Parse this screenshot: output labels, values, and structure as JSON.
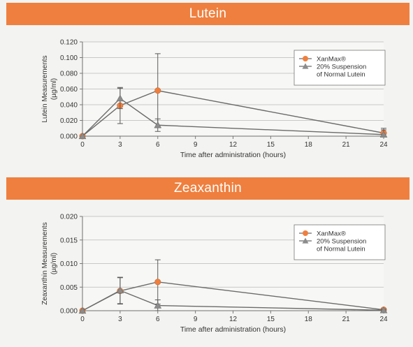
{
  "chart_data": [
    {
      "type": "line",
      "title": "Lutein",
      "xlabel": "Time after administration (hours)",
      "ylabel": "Lutein Measurements (µg/ml)",
      "ylabel_lines": [
        "Lutein Measurements",
        "(µg/ml)"
      ],
      "xlim": [
        0,
        24
      ],
      "ylim": [
        0,
        0.12
      ],
      "x_ticks": [
        0,
        3,
        6,
        9,
        12,
        15,
        18,
        21,
        24
      ],
      "y_ticks": [
        0,
        0.02,
        0.04,
        0.06,
        0.08,
        0.1,
        0.12
      ],
      "y_tick_labels": [
        "0.000",
        "0.020",
        "0.040",
        "0.060",
        "0.080",
        "0.100",
        "0.120"
      ],
      "grid": true,
      "legend_position": "top-right",
      "series": [
        {
          "name": "XanMax®",
          "color": "#ef7f3e",
          "marker": "circle",
          "x": [
            0,
            3,
            6,
            24
          ],
          "y": [
            0.0,
            0.039,
            0.058,
            0.004
          ],
          "error": [
            0,
            0.023,
            0.047,
            0.006
          ]
        },
        {
          "name": "20% Suspension of Normal Lutein",
          "legend_lines": [
            "20% Suspension",
            "of Normal Lutein"
          ],
          "color": "#8c8c8c",
          "marker": "triangle",
          "x": [
            0,
            3,
            6,
            24
          ],
          "y": [
            0.0,
            0.048,
            0.014,
            0.002
          ],
          "error": [
            0,
            0.013,
            0.008,
            0.006
          ]
        }
      ]
    },
    {
      "type": "line",
      "title": "Zeaxanthin",
      "xlabel": "Time after administration (hours)",
      "ylabel": "Zeaxanthin Measurements (µg/ml)",
      "ylabel_lines": [
        "Zeaxanthin Measurements",
        "(µg/ml)"
      ],
      "xlim": [
        0,
        24
      ],
      "ylim": [
        0,
        0.02
      ],
      "x_ticks": [
        0,
        3,
        6,
        9,
        12,
        15,
        18,
        21,
        24
      ],
      "y_ticks": [
        0,
        0.005,
        0.01,
        0.015,
        0.02
      ],
      "y_tick_labels": [
        "0.000",
        "0.005",
        "0.010",
        "0.015",
        "0.020"
      ],
      "grid": true,
      "legend_position": "top-right",
      "series": [
        {
          "name": "XanMax®",
          "color": "#ef7f3e",
          "marker": "circle",
          "x": [
            0,
            3,
            6,
            24
          ],
          "y": [
            0.0,
            0.0042,
            0.0061,
            0.0002
          ],
          "error": [
            0,
            0.0028,
            0.0047,
            0.0003
          ]
        },
        {
          "name": "20% Suspension of Normal Lutein",
          "legend_lines": [
            "20% Suspension",
            "of Normal Lutein"
          ],
          "color": "#8c8c8c",
          "marker": "triangle",
          "x": [
            0,
            3,
            6,
            24
          ],
          "y": [
            0.0,
            0.0043,
            0.0011,
            0.0001
          ],
          "error": [
            0,
            0.0028,
            0.0012,
            0.0002
          ]
        }
      ]
    }
  ]
}
